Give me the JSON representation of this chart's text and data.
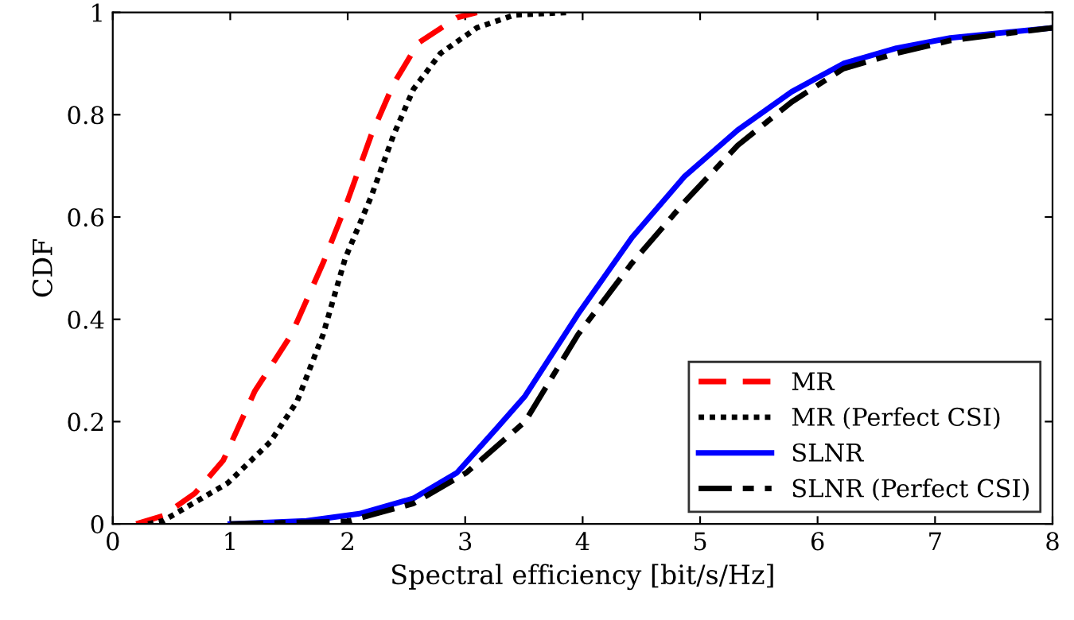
{
  "chart_data": {
    "type": "line",
    "xlabel": "Spectral efficiency [bit/s/Hz]",
    "ylabel": "CDF",
    "xlim": [
      0,
      8
    ],
    "ylim": [
      0,
      1
    ],
    "xticks": [
      0,
      1,
      2,
      3,
      4,
      5,
      6,
      7,
      8
    ],
    "yticks": [
      0,
      0.2,
      0.4,
      0.6,
      0.8,
      1
    ],
    "grid": false,
    "legend": "bottom right",
    "marker": "none",
    "series": [
      {
        "name": "MR",
        "color": "#ff0000",
        "line_style": "dashed",
        "x": [
          0.2,
          0.43,
          0.7,
          0.94,
          1.21,
          1.52,
          1.79,
          1.98,
          2.2,
          2.39,
          2.6,
          2.93,
          3.1
        ],
        "values": [
          0,
          0.016,
          0.06,
          0.124,
          0.26,
          0.37,
          0.51,
          0.62,
          0.76,
          0.86,
          0.94,
          0.99,
          1.0
        ]
      },
      {
        "name": "MR (Perfect CSI)",
        "color": "#000000",
        "line_style": "dotted",
        "x": [
          0.3,
          0.43,
          0.98,
          1.34,
          1.57,
          1.79,
          1.98,
          2.2,
          2.39,
          2.56,
          2.79,
          3.1,
          3.42,
          3.88
        ],
        "values": [
          0,
          0.006,
          0.08,
          0.16,
          0.24,
          0.37,
          0.52,
          0.64,
          0.76,
          0.85,
          0.92,
          0.97,
          0.995,
          1.0
        ]
      },
      {
        "name": "SLNR",
        "color": "#0000ff",
        "line_style": "solid",
        "x": [
          1.0,
          1.65,
          2.1,
          2.56,
          2.93,
          3.28,
          3.51,
          3.96,
          4.42,
          4.87,
          5.32,
          5.78,
          6.22,
          6.67,
          7.13,
          8
        ],
        "values": [
          0,
          0.006,
          0.02,
          0.05,
          0.1,
          0.19,
          0.25,
          0.41,
          0.56,
          0.68,
          0.77,
          0.845,
          0.9,
          0.93,
          0.95,
          0.97
        ]
      },
      {
        "name": "SLNR (Perfect CSI)",
        "color": "#000000",
        "line_style": "dashdot",
        "x": [
          1.0,
          2.0,
          2.56,
          3.01,
          3.51,
          3.96,
          4.42,
          4.87,
          5.32,
          5.78,
          6.22,
          6.67,
          7.13,
          8
        ],
        "values": [
          0,
          0.005,
          0.04,
          0.1,
          0.2,
          0.37,
          0.51,
          0.63,
          0.74,
          0.825,
          0.89,
          0.92,
          0.945,
          0.97
        ]
      }
    ]
  }
}
